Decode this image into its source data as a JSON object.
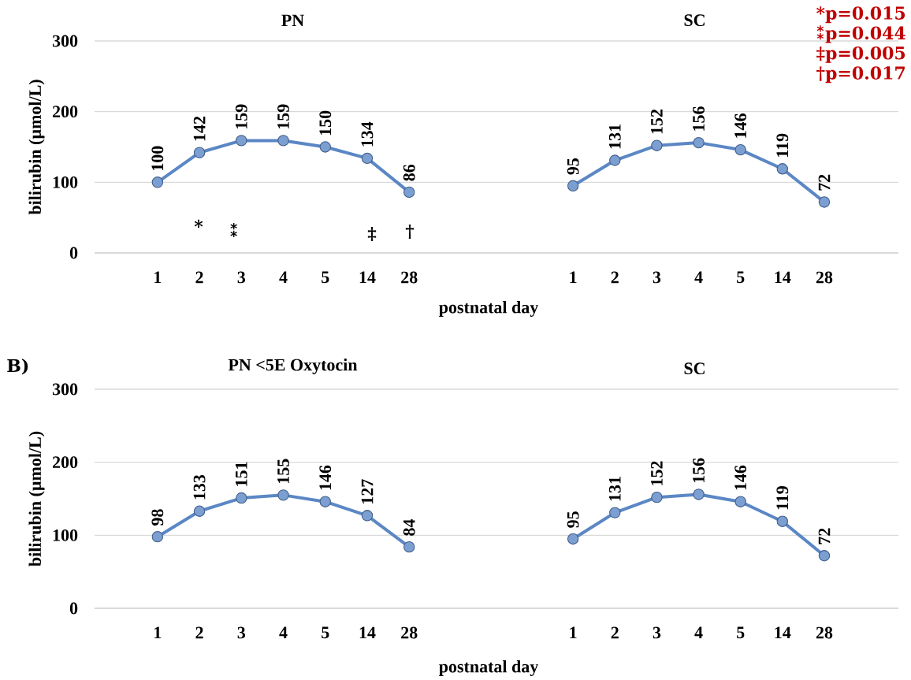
{
  "chart_data": [
    {
      "type": "line",
      "title": "PN",
      "xlabel": "postnatal day",
      "ylabel": "bilirubin (µmol/L)",
      "categories": [
        "1",
        "2",
        "3",
        "4",
        "5",
        "14",
        "28"
      ],
      "values": [
        100,
        142,
        159,
        159,
        150,
        134,
        86
      ],
      "color": "#5b87c5",
      "ylim": [
        0,
        300
      ],
      "yticks": [
        0,
        100,
        200,
        300
      ],
      "grid": "y",
      "marker": "circle",
      "data_labels": true,
      "annotations": [
        "*",
        "⁑",
        "‡",
        "†"
      ]
    },
    {
      "type": "line",
      "title": "SC",
      "categories": [
        "1",
        "2",
        "3",
        "4",
        "5",
        "14",
        "28"
      ],
      "values": [
        95,
        131,
        152,
        156,
        146,
        119,
        72
      ],
      "color": "#5b87c5",
      "ylim": [
        0,
        300
      ],
      "yticks": [
        0,
        100,
        200,
        300
      ],
      "grid": "y",
      "marker": "circle",
      "data_labels": true,
      "tick_labels": "x",
      "annotations": [
        "*p=0.015",
        "⁑p=0.044",
        "‡p=0.005",
        "†p=0.017"
      ]
    },
    {
      "type": "line",
      "title": "PN <5E Oxytocin",
      "xlabel": "postnatal day",
      "ylabel": "bilirubin (µmol/L)",
      "categories": [
        "1",
        "2",
        "3",
        "4",
        "5",
        "14",
        "28"
      ],
      "values": [
        98,
        133,
        151,
        155,
        146,
        127,
        84
      ],
      "color": "#5b87c5",
      "ylim": [
        0,
        300
      ],
      "yticks": [
        0,
        100,
        200,
        300
      ],
      "grid": "y",
      "marker": "circle",
      "data_labels": true,
      "annotations": [
        "B)"
      ]
    },
    {
      "type": "line",
      "title": "SC",
      "categories": [
        "1",
        "2",
        "3",
        "4",
        "5",
        "14",
        "28"
      ],
      "values": [
        95,
        131,
        152,
        156,
        146,
        119,
        72
      ],
      "color": "#5b87c5",
      "ylim": [
        0,
        300
      ],
      "yticks": [
        0,
        100,
        200,
        300
      ],
      "grid": "y",
      "marker": "circle",
      "data_labels": true,
      "tick_labels": "x"
    }
  ]
}
